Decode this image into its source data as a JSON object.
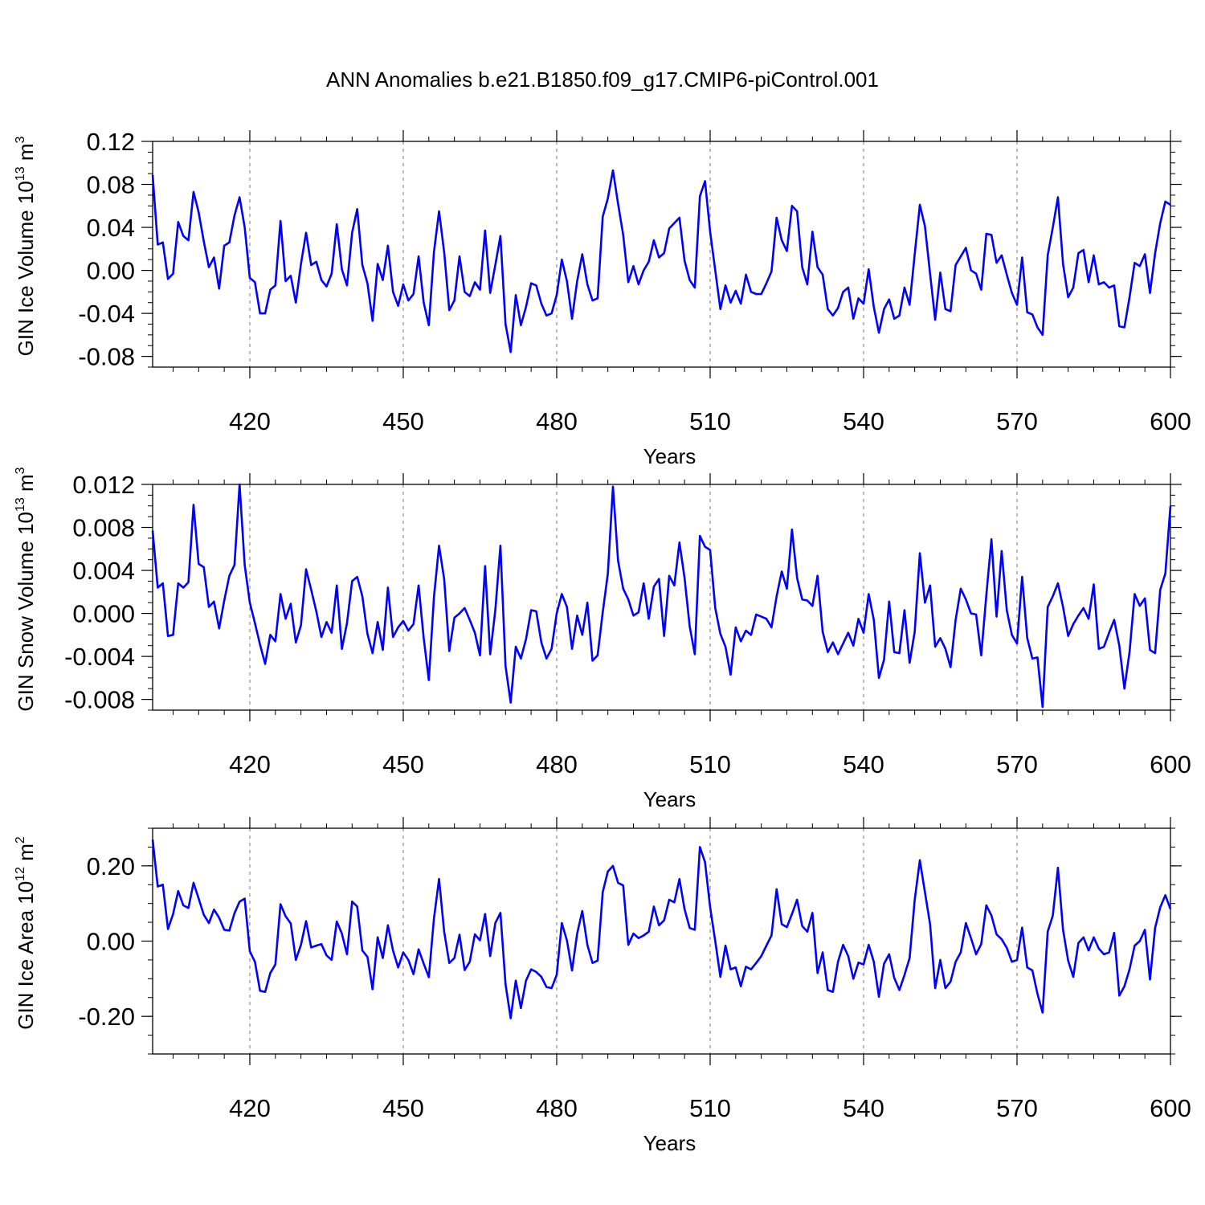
{
  "title": "ANN Anomalies b.e21.B1850.f09_g17.CMIP6-piControl.001",
  "line_color": "#0000ff",
  "chart_data": [
    {
      "type": "line",
      "title": "ANN Anomalies b.e21.B1850.f09_g17.CMIP6-piControl.001",
      "xlabel": "Years",
      "ylabel_main": "GIN Ice Volume 10",
      "ylabel_exp": "13",
      "ylabel_unit": " m",
      "ylabel_unit_exp": "3",
      "xlim": [
        401,
        600
      ],
      "ylim": [
        -0.09,
        0.12
      ],
      "xticks": [
        420,
        450,
        480,
        510,
        540,
        570,
        600
      ],
      "yticks": [
        -0.08,
        -0.04,
        0.0,
        0.04,
        0.08,
        0.12
      ],
      "ytick_labels": [
        "-0.08",
        "-0.04",
        "0.00",
        "0.04",
        "0.08",
        "0.12"
      ],
      "grid_x": true,
      "x_start": 401,
      "values": [
        0.089,
        0.024,
        0.026,
        -0.008,
        -0.003,
        0.045,
        0.032,
        0.028,
        0.073,
        0.054,
        0.027,
        0.003,
        0.012,
        -0.017,
        0.023,
        0.026,
        0.051,
        0.068,
        0.04,
        -0.007,
        -0.011,
        -0.04,
        -0.04,
        -0.018,
        -0.014,
        0.046,
        -0.01,
        -0.005,
        -0.03,
        0.006,
        0.035,
        0.005,
        0.008,
        -0.009,
        -0.015,
        -0.003,
        0.043,
        0.001,
        -0.014,
        0.035,
        0.057,
        0.005,
        -0.012,
        -0.047,
        0.006,
        -0.009,
        0.023,
        -0.02,
        -0.033,
        -0.013,
        -0.028,
        -0.022,
        0.013,
        -0.03,
        -0.051,
        0.017,
        0.055,
        0.017,
        -0.037,
        -0.028,
        0.013,
        -0.02,
        -0.024,
        -0.011,
        -0.018,
        0.037,
        -0.021,
        0.005,
        0.032,
        -0.05,
        -0.076,
        -0.023,
        -0.051,
        -0.034,
        -0.012,
        -0.014,
        -0.031,
        -0.042,
        -0.04,
        -0.023,
        0.01,
        -0.01,
        -0.045,
        -0.01,
        0.015,
        -0.013,
        -0.028,
        -0.026,
        0.05,
        0.067,
        0.093,
        0.062,
        0.033,
        -0.011,
        0.004,
        -0.013,
        0.0,
        0.008,
        0.028,
        0.012,
        0.016,
        0.039,
        0.044,
        0.049,
        0.009,
        -0.009,
        -0.016,
        0.069,
        0.083,
        0.036,
        0.0,
        -0.036,
        -0.014,
        -0.03,
        -0.019,
        -0.031,
        -0.004,
        -0.02,
        -0.022,
        -0.022,
        -0.012,
        -0.001,
        0.049,
        0.028,
        0.018,
        0.06,
        0.055,
        0.003,
        -0.013,
        0.036,
        0.003,
        -0.004,
        -0.036,
        -0.042,
        -0.035,
        -0.02,
        -0.016,
        -0.045,
        -0.026,
        -0.031,
        0.001,
        -0.034,
        -0.058,
        -0.036,
        -0.027,
        -0.045,
        -0.042,
        -0.016,
        -0.032,
        0.015,
        0.061,
        0.041,
        -0.003,
        -0.046,
        -0.002,
        -0.036,
        -0.038,
        0.005,
        0.013,
        0.021,
        0.0,
        -0.003,
        -0.018,
        0.034,
        0.033,
        0.007,
        0.014,
        -0.004,
        -0.021,
        -0.032,
        0.012,
        -0.039,
        -0.041,
        -0.053,
        -0.06,
        0.014,
        0.04,
        0.068,
        0.006,
        -0.025,
        -0.016,
        0.016,
        0.019,
        -0.011,
        0.014,
        -0.013,
        -0.011,
        -0.016,
        -0.014,
        -0.052,
        -0.053,
        -0.025,
        0.007,
        0.004,
        0.015,
        -0.021,
        0.016,
        0.044,
        0.064,
        0.061
      ]
    },
    {
      "type": "line",
      "xlabel": "Years",
      "ylabel_main": "GIN Snow Volume 10",
      "ylabel_exp": "13",
      "ylabel_unit": " m",
      "ylabel_unit_exp": "3",
      "xlim": [
        401,
        600
      ],
      "ylim": [
        -0.009,
        0.012
      ],
      "xticks": [
        420,
        450,
        480,
        510,
        540,
        570,
        600
      ],
      "yticks": [
        -0.008,
        -0.004,
        0.0,
        0.004,
        0.008,
        0.012
      ],
      "ytick_labels": [
        "-0.008",
        "-0.004",
        "0.000",
        "0.004",
        "0.008",
        "0.012"
      ],
      "grid_x": true,
      "x_start": 401,
      "values": [
        0.0077,
        0.0024,
        0.0028,
        -0.0021,
        -0.002,
        0.0028,
        0.0024,
        0.0029,
        0.0101,
        0.0046,
        0.0043,
        0.0006,
        0.0011,
        -0.0014,
        0.0012,
        0.0035,
        0.0045,
        0.012,
        0.0045,
        0.001,
        -0.0009,
        -0.0029,
        -0.0047,
        -0.002,
        -0.0026,
        0.0018,
        -0.0005,
        0.0009,
        -0.0027,
        -0.0011,
        0.0041,
        0.0022,
        0.0002,
        -0.0022,
        -0.0008,
        -0.0018,
        0.0026,
        -0.0033,
        -0.0009,
        0.003,
        0.0034,
        0.0016,
        -0.0019,
        -0.0037,
        -0.0008,
        -0.0034,
        0.0024,
        -0.0022,
        -0.0013,
        -0.0007,
        -0.0016,
        -0.001,
        0.0026,
        -0.0023,
        -0.0062,
        0.0015,
        0.0063,
        0.0032,
        -0.0035,
        -0.0004,
        0.0,
        0.0005,
        -0.0006,
        -0.0018,
        -0.0039,
        0.0044,
        -0.0038,
        0.0003,
        0.0063,
        -0.0049,
        -0.0083,
        -0.0031,
        -0.0042,
        -0.0024,
        0.0003,
        0.0002,
        -0.0027,
        -0.0042,
        -0.0033,
        0.0,
        0.0018,
        0.0006,
        -0.0033,
        -0.0002,
        -0.002,
        0.001,
        -0.0044,
        -0.0039,
        0.0001,
        0.0037,
        0.0118,
        0.0049,
        0.0023,
        0.0013,
        -0.0002,
        0.0001,
        0.0028,
        -0.0005,
        0.0025,
        0.0032,
        -0.0021,
        0.0035,
        0.0026,
        0.0066,
        0.0033,
        -0.0012,
        -0.0038,
        0.0072,
        0.0062,
        0.0059,
        0.0005,
        -0.0019,
        -0.0031,
        -0.0057,
        -0.0013,
        -0.0026,
        -0.0016,
        -0.002,
        -0.0001,
        -0.0003,
        -0.0005,
        -0.0013,
        0.0016,
        0.0039,
        0.0023,
        0.0078,
        0.0033,
        0.0013,
        0.0012,
        0.0007,
        0.0035,
        -0.0017,
        -0.0036,
        -0.0027,
        -0.0038,
        -0.0028,
        -0.0018,
        -0.003,
        -0.0005,
        -0.0018,
        0.0018,
        -0.0006,
        -0.006,
        -0.0043,
        0.0011,
        -0.0036,
        -0.0037,
        0.0003,
        -0.0046,
        -0.0017,
        0.0056,
        0.001,
        0.0026,
        -0.0031,
        -0.0023,
        -0.0033,
        -0.005,
        -0.0006,
        0.0023,
        0.0013,
        0.0,
        -0.0001,
        -0.0039,
        0.0017,
        0.0069,
        -0.0003,
        0.0058,
        0.0003,
        -0.002,
        -0.0028,
        0.0034,
        -0.0023,
        -0.0042,
        -0.0041,
        -0.0087,
        0.0006,
        0.0016,
        0.0028,
        0.0006,
        -0.0021,
        -0.001,
        -0.0002,
        0.0005,
        -0.0005,
        0.0027,
        -0.0033,
        -0.0031,
        -0.0018,
        -0.0006,
        -0.003,
        -0.007,
        -0.0036,
        0.0018,
        0.0007,
        0.0014,
        -0.0034,
        -0.0037,
        0.0022,
        0.0037,
        0.01
      ]
    },
    {
      "type": "line",
      "xlabel": "Years",
      "ylabel_main": "GIN Ice Area 10",
      "ylabel_exp": "12",
      "ylabel_unit": " m",
      "ylabel_unit_exp": "2",
      "xlim": [
        401,
        600
      ],
      "ylim": [
        -0.3,
        0.3
      ],
      "xticks": [
        420,
        450,
        480,
        510,
        540,
        570,
        600
      ],
      "yticks": [
        -0.2,
        0.0,
        0.2
      ],
      "ytick_labels": [
        "-0.20",
        "0.00",
        "0.20"
      ],
      "grid_x": true,
      "x_start": 401,
      "values": [
        0.27,
        0.145,
        0.15,
        0.032,
        0.072,
        0.133,
        0.095,
        0.088,
        0.155,
        0.113,
        0.07,
        0.048,
        0.084,
        0.062,
        0.03,
        0.028,
        0.074,
        0.105,
        0.113,
        -0.027,
        -0.055,
        -0.132,
        -0.135,
        -0.085,
        -0.062,
        0.098,
        0.066,
        0.047,
        -0.05,
        -0.01,
        0.053,
        -0.017,
        -0.012,
        -0.008,
        -0.038,
        -0.05,
        0.052,
        0.02,
        -0.035,
        0.105,
        0.092,
        -0.025,
        -0.042,
        -0.128,
        0.01,
        -0.045,
        0.042,
        -0.025,
        -0.07,
        -0.03,
        -0.05,
        -0.088,
        -0.022,
        -0.06,
        -0.096,
        0.06,
        0.165,
        0.025,
        -0.058,
        -0.045,
        0.017,
        -0.077,
        -0.055,
        0.018,
        0.002,
        0.072,
        -0.04,
        0.048,
        0.075,
        -0.115,
        -0.205,
        -0.105,
        -0.178,
        -0.105,
        -0.075,
        -0.082,
        -0.095,
        -0.122,
        -0.125,
        -0.09,
        0.048,
        0.002,
        -0.078,
        0.02,
        0.08,
        -0.01,
        -0.058,
        -0.052,
        0.13,
        0.185,
        0.2,
        0.155,
        0.148,
        -0.01,
        0.02,
        0.008,
        0.015,
        0.025,
        0.092,
        0.042,
        0.055,
        0.11,
        0.103,
        0.165,
        0.085,
        0.035,
        0.03,
        0.25,
        0.21,
        0.09,
        0.0,
        -0.095,
        -0.012,
        -0.075,
        -0.07,
        -0.12,
        -0.068,
        -0.075,
        -0.058,
        -0.04,
        -0.012,
        0.015,
        0.138,
        0.045,
        0.037,
        0.072,
        0.11,
        0.04,
        0.025,
        0.075,
        -0.085,
        -0.03,
        -0.13,
        -0.135,
        -0.055,
        -0.01,
        -0.04,
        -0.1,
        -0.057,
        -0.062,
        -0.01,
        -0.055,
        -0.148,
        -0.06,
        -0.035,
        -0.098,
        -0.13,
        -0.09,
        -0.045,
        0.11,
        0.215,
        0.13,
        0.045,
        -0.125,
        -0.05,
        -0.125,
        -0.108,
        -0.055,
        -0.03,
        0.048,
        0.008,
        -0.035,
        -0.008,
        0.095,
        0.068,
        0.018,
        0.005,
        -0.018,
        -0.055,
        -0.05,
        0.036,
        -0.07,
        -0.078,
        -0.14,
        -0.19,
        0.025,
        0.068,
        0.195,
        0.03,
        -0.052,
        -0.095,
        -0.005,
        0.01,
        -0.025,
        0.01,
        -0.02,
        -0.035,
        -0.03,
        0.022,
        -0.145,
        -0.12,
        -0.075,
        -0.012,
        0.0,
        0.03,
        -0.102,
        0.035,
        0.09,
        0.122,
        0.085
      ]
    }
  ]
}
